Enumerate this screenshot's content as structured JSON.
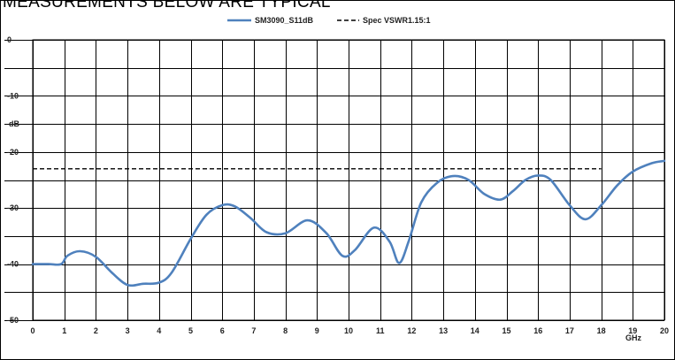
{
  "headline": "MEASUREMENTS BELOW ARE TYPICAL",
  "chart_data": {
    "type": "line",
    "title": "",
    "xlabel": "GHz",
    "ylabel": "dB",
    "xlim": [
      0,
      20
    ],
    "ylim": [
      -50,
      0
    ],
    "x_ticks": [
      "0",
      "1",
      "2",
      "3",
      "4",
      "5",
      "6",
      "7",
      "8",
      "9",
      "10",
      "11",
      "12",
      "13",
      "14",
      "15",
      "16",
      "17",
      "18",
      "19",
      "20"
    ],
    "y_ticks": [
      "0",
      "-10",
      "-20",
      "-30",
      "-40",
      "-50"
    ],
    "grid": true,
    "legend_position": "top-center",
    "series": [
      {
        "name": "SM3090_S11dB",
        "color": "#4f81bd",
        "style": "solid",
        "x": [
          0,
          0.5,
          0.9,
          1.1,
          1.5,
          2.0,
          2.5,
          3.0,
          3.5,
          4.0,
          4.4,
          5.0,
          5.5,
          6.0,
          6.4,
          6.9,
          7.4,
          8.0,
          8.7,
          9.3,
          9.8,
          10.2,
          10.8,
          11.3,
          11.6,
          11.9,
          12.3,
          12.8,
          13.3,
          13.8,
          14.3,
          14.8,
          15.2,
          15.6,
          16.0,
          16.4,
          17.0,
          17.5,
          18.0,
          18.5,
          19.0,
          19.6,
          20.0
        ],
        "y": [
          -40,
          -40,
          -40,
          -38.5,
          -37.7,
          -38.7,
          -41.5,
          -43.7,
          -43.5,
          -43.3,
          -41.5,
          -35.5,
          -31.2,
          -29.5,
          -29.7,
          -31.8,
          -34.3,
          -34.5,
          -32.2,
          -34.5,
          -38.5,
          -37.5,
          -33.5,
          -36,
          -39.8,
          -36,
          -29,
          -25.5,
          -24.3,
          -25,
          -27.5,
          -28.5,
          -27,
          -25,
          -24.2,
          -25,
          -29.5,
          -32,
          -29.5,
          -26,
          -23.5,
          -22,
          -21.6
        ]
      },
      {
        "name": "Spec VSWR1.15:1",
        "color": "#000000",
        "style": "dashed",
        "x": [
          0,
          18
        ],
        "y": [
          -23,
          -23
        ]
      }
    ]
  }
}
